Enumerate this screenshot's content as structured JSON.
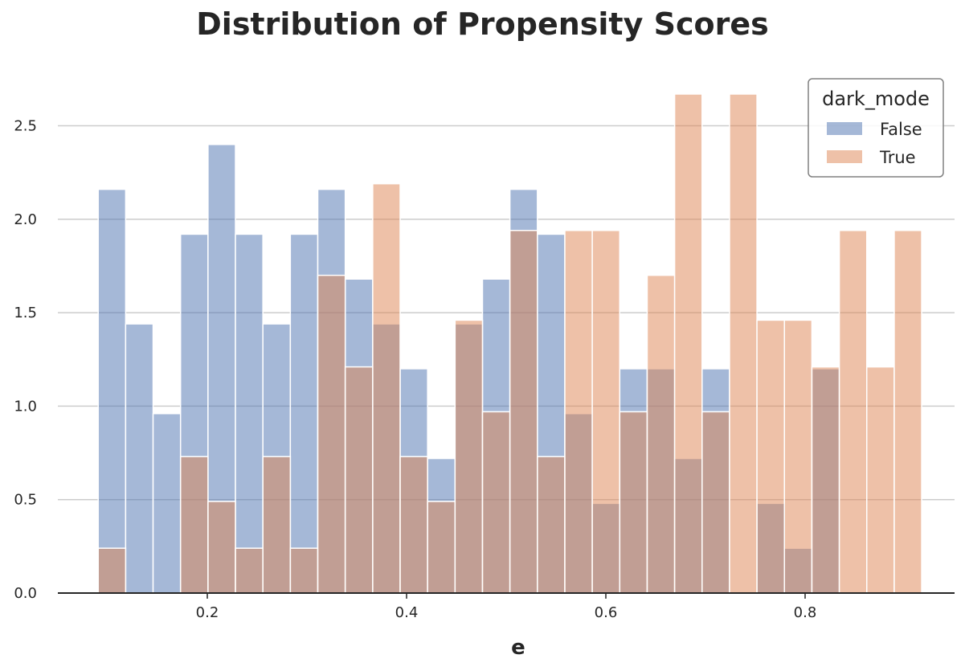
{
  "chart_data": {
    "type": "histogram",
    "title": "Distribution of Propensity Scores",
    "xlabel": "e",
    "ylabel": "",
    "xlim": [
      0.05,
      0.95
    ],
    "ylim": [
      0,
      2.8
    ],
    "grid": "horizontal",
    "xticks": [
      0.2,
      0.4,
      0.6,
      0.8
    ],
    "xtick_labels": [
      "0.2",
      "0.4",
      "0.6",
      "0.8"
    ],
    "yticks": [
      0.0,
      0.5,
      1.0,
      1.5,
      2.0,
      2.5
    ],
    "ytick_labels": [
      "0.0",
      "0.5",
      "1.0",
      "1.5",
      "2.0",
      "2.5"
    ],
    "bin_start": 0.0905,
    "bin_width": 0.02755,
    "bin_count": 30,
    "legend": {
      "title": "dark_mode",
      "position": "top-right"
    },
    "series": [
      {
        "name": "False",
        "color": "#4c72b0",
        "values": [
          2.16,
          1.44,
          0.96,
          1.92,
          2.4,
          1.92,
          1.44,
          1.92,
          2.16,
          1.68,
          1.44,
          1.2,
          0.72,
          1.44,
          1.68,
          2.16,
          1.92,
          0.96,
          0.48,
          1.2,
          1.2,
          0.72,
          1.2,
          0,
          0.48,
          0.24,
          1.2,
          0,
          0,
          0
        ]
      },
      {
        "name": "True",
        "color": "#dd8452",
        "values": [
          0.24,
          0,
          0,
          0.73,
          0.49,
          0.24,
          0.73,
          0.24,
          1.7,
          1.21,
          2.19,
          0.73,
          0.49,
          1.46,
          0.97,
          1.94,
          0.73,
          1.94,
          1.94,
          0.97,
          1.7,
          2.67,
          0.97,
          2.67,
          1.46,
          1.46,
          1.21,
          1.94,
          1.21,
          1.94
        ]
      }
    ]
  }
}
